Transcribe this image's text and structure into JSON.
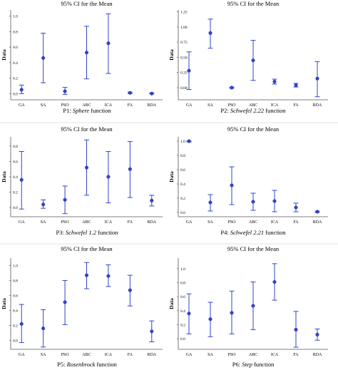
{
  "chart_data": [
    {
      "type": "scatter",
      "title": "95% CI for the Mean",
      "ylabel": "Data",
      "caption_prefix": "P1:",
      "caption_function": "Sphere",
      "caption_suffix": "function",
      "categories": [
        "GA",
        "SA",
        "PSO",
        "ABC",
        "ICA",
        "FA",
        "RDA"
      ],
      "mean": [
        0.05,
        0.46,
        0.03,
        0.53,
        0.65,
        0.01,
        0.0
      ],
      "lower": [
        0.0,
        0.14,
        -0.01,
        0.19,
        0.26,
        0.0,
        0.0
      ],
      "upper": [
        0.11,
        0.78,
        0.08,
        0.87,
        1.03,
        0.02,
        0.01
      ],
      "ylim": [
        -0.08,
        1.08
      ],
      "yticks": [
        0.0,
        0.2,
        0.4,
        0.6,
        0.8,
        1.0
      ],
      "ytick_labels": [
        "0.0",
        "0.2",
        "0.4",
        "0.6",
        "0.8",
        "1.0"
      ],
      "color": "#3344cc"
    },
    {
      "type": "scatter",
      "title": "95% CI for the Mean",
      "ylabel": "Data",
      "caption_prefix": "P2:",
      "caption_function": "Schwefel 2.22",
      "caption_suffix": "function",
      "categories": [
        "GA",
        "SA",
        "PSO",
        "ABC",
        "ICA",
        "FA",
        "RDA"
      ],
      "mean": [
        0.28,
        0.9,
        0.0,
        0.45,
        0.1,
        0.04,
        0.15
      ],
      "lower": [
        -0.03,
        0.65,
        -0.01,
        0.12,
        0.06,
        0.01,
        -0.15
      ],
      "upper": [
        0.59,
        1.13,
        0.01,
        0.78,
        0.14,
        0.07,
        0.43
      ],
      "ylim": [
        -0.2,
        1.28
      ],
      "yticks": [
        0.0,
        0.25,
        0.5,
        0.75,
        1.0,
        1.25
      ],
      "ytick_labels": [
        "0.00",
        "0.25",
        "0.50",
        "0.75",
        "1.00",
        "1.25"
      ],
      "color": "#3344cc"
    },
    {
      "type": "scatter",
      "title": "95% CI for the Mean",
      "ylabel": "Data",
      "caption_prefix": "P3:",
      "caption_function": "Schwefel 1.2",
      "caption_suffix": "function",
      "categories": [
        "GA",
        "SA",
        "PSO",
        "ABC",
        "ICA",
        "FA",
        "RDA"
      ],
      "mean": [
        0.36,
        0.04,
        0.1,
        0.52,
        0.4,
        0.5,
        0.09
      ],
      "lower": [
        -0.02,
        -0.01,
        -0.08,
        0.16,
        0.06,
        0.13,
        0.02
      ],
      "upper": [
        0.73,
        0.1,
        0.28,
        0.88,
        0.73,
        0.86,
        0.16
      ],
      "ylim": [
        -0.12,
        0.92
      ],
      "yticks": [
        0.0,
        0.2,
        0.4,
        0.6,
        0.8
      ],
      "ytick_labels": [
        "0.0",
        "0.2",
        "0.4",
        "0.6",
        "0.8"
      ],
      "color": "#3344cc"
    },
    {
      "type": "scatter",
      "title": "95% CI for the Mean",
      "ylabel": "Data",
      "caption_prefix": "P4:",
      "caption_function": "Schwefel 2.21",
      "caption_suffix": "function",
      "categories": [
        "GA",
        "SA",
        "PSO",
        "ABC",
        "ICA",
        "FA",
        "RDA"
      ],
      "mean": [
        1.0,
        0.14,
        0.38,
        0.15,
        0.16,
        0.07,
        0.01
      ],
      "lower": [
        0.99,
        0.02,
        0.11,
        0.03,
        0.01,
        0.01,
        0.0
      ],
      "upper": [
        1.0,
        0.25,
        0.64,
        0.27,
        0.31,
        0.13,
        0.02
      ],
      "ylim": [
        -0.06,
        1.06
      ],
      "yticks": [
        0.0,
        0.2,
        0.4,
        0.6,
        0.8,
        1.0
      ],
      "ytick_labels": [
        "0.0",
        "0.2",
        "0.4",
        "0.6",
        "0.8",
        "1.0"
      ],
      "color": "#3344cc"
    },
    {
      "type": "scatter",
      "title": "95% CI for the Mean",
      "ylabel": "Data",
      "caption_prefix": "P5:",
      "caption_function": "Rosenbrock",
      "caption_suffix": "function",
      "categories": [
        "GA",
        "SA",
        "PSO",
        "ABC",
        "ICA",
        "FA",
        "RDA"
      ],
      "mean": [
        0.22,
        0.16,
        0.51,
        0.87,
        0.86,
        0.67,
        0.12
      ],
      "lower": [
        -0.03,
        -0.09,
        0.21,
        0.69,
        0.72,
        0.46,
        -0.02
      ],
      "upper": [
        0.48,
        0.41,
        0.8,
        1.04,
        1.01,
        0.87,
        0.26
      ],
      "ylim": [
        -0.12,
        1.1
      ],
      "yticks": [
        0.0,
        0.2,
        0.4,
        0.6,
        0.8,
        1.0
      ],
      "ytick_labels": [
        "0.0",
        "0.2",
        "0.4",
        "0.6",
        "0.8",
        "1.0"
      ],
      "color": "#3344cc"
    },
    {
      "type": "scatter",
      "title": "95% CI for the Mean",
      "ylabel": "Data",
      "caption_prefix": "P6:",
      "caption_function": "Step",
      "caption_suffix": "function",
      "categories": [
        "GA",
        "SA",
        "PSO",
        "ABC",
        "ICA",
        "FA",
        "RDA"
      ],
      "mean": [
        0.36,
        0.28,
        0.37,
        0.47,
        0.81,
        0.13,
        0.06
      ],
      "lower": [
        0.07,
        0.03,
        0.07,
        0.13,
        0.55,
        -0.12,
        -0.02
      ],
      "upper": [
        0.64,
        0.52,
        0.68,
        0.81,
        1.07,
        0.39,
        0.14
      ],
      "ylim": [
        -0.15,
        1.15
      ],
      "yticks": [
        0.0,
        0.2,
        0.4,
        0.6,
        0.8,
        1.0
      ],
      "ytick_labels": [
        "0.0",
        "0.2",
        "0.4",
        "0.6",
        "0.8",
        "1.0"
      ],
      "color": "#3344cc"
    }
  ]
}
